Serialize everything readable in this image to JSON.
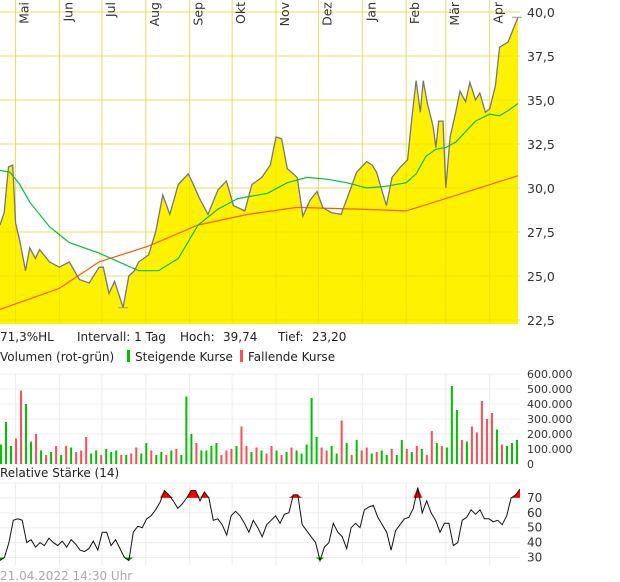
{
  "chart_data": [
    {
      "type": "area",
      "x_range": [
        "2021-04-20",
        "2022-04-21"
      ],
      "ylim": [
        22.5,
        40.0
      ],
      "yticks": [
        "22,5",
        "25,0",
        "27,5",
        "30,0",
        "32,5",
        "35,0",
        "37,5",
        "40,0"
      ],
      "ytick_values": [
        22.5,
        25,
        27.5,
        30,
        32.5,
        35,
        37.5,
        40
      ],
      "months": [
        {
          "label": "Mai",
          "date": "2021-05-01"
        },
        {
          "label": "Jun",
          "date": "2021-06-01"
        },
        {
          "label": "Jul",
          "date": "2021-07-01"
        },
        {
          "label": "Aug",
          "date": "2021-08-01"
        },
        {
          "label": "Sep",
          "date": "2021-09-01"
        },
        {
          "label": "Okt",
          "date": "2021-10-01"
        },
        {
          "label": "Nov",
          "date": "2021-11-01"
        },
        {
          "label": "Dez",
          "date": "2021-12-01"
        },
        {
          "label": "Jan",
          "date": "2022-01-01"
        },
        {
          "label": "Feb",
          "date": "2022-02-01"
        },
        {
          "label": "Mär",
          "date": "2022-03-01"
        },
        {
          "label": "Apr",
          "date": "2022-04-01"
        }
      ],
      "grid": true,
      "colors": {
        "fill": "#fff200",
        "line": "#777777",
        "ma_short": "#00c040",
        "ma_long": "#ff5a00"
      },
      "price": [
        [
          "2021-04-20",
          27.9
        ],
        [
          "2021-04-23",
          28.6
        ],
        [
          "2021-04-26",
          31.2
        ],
        [
          "2021-04-29",
          31.3
        ],
        [
          "2021-05-01",
          28.0
        ],
        [
          "2021-05-04",
          27.0
        ],
        [
          "2021-05-08",
          25.3
        ],
        [
          "2021-05-11",
          26.6
        ],
        [
          "2021-05-15",
          26.0
        ],
        [
          "2021-05-18",
          26.5
        ],
        [
          "2021-05-25",
          25.8
        ],
        [
          "2021-06-01",
          25.5
        ],
        [
          "2021-06-08",
          25.8
        ],
        [
          "2021-06-15",
          24.8
        ],
        [
          "2021-06-22",
          24.6
        ],
        [
          "2021-06-29",
          25.5
        ],
        [
          "2021-07-02",
          25.5
        ],
        [
          "2021-07-06",
          24.0
        ],
        [
          "2021-07-10",
          24.7
        ],
        [
          "2021-07-16",
          23.2
        ],
        [
          "2021-07-20",
          25.0
        ],
        [
          "2021-07-24",
          25.3
        ],
        [
          "2021-07-27",
          25.8
        ],
        [
          "2021-08-03",
          26.2
        ],
        [
          "2021-08-08",
          27.5
        ],
        [
          "2021-08-13",
          29.6
        ],
        [
          "2021-08-18",
          28.5
        ],
        [
          "2021-08-24",
          30.2
        ],
        [
          "2021-08-31",
          30.8
        ],
        [
          "2021-09-03",
          30.3
        ],
        [
          "2021-09-08",
          29.4
        ],
        [
          "2021-09-14",
          28.5
        ],
        [
          "2021-09-21",
          29.9
        ],
        [
          "2021-09-27",
          30.4
        ],
        [
          "2021-10-02",
          29.0
        ],
        [
          "2021-10-10",
          28.7
        ],
        [
          "2021-10-15",
          30.2
        ],
        [
          "2021-10-22",
          30.6
        ],
        [
          "2021-10-28",
          31.3
        ],
        [
          "2021-11-01",
          32.9
        ],
        [
          "2021-11-05",
          32.8
        ],
        [
          "2021-11-09",
          31.1
        ],
        [
          "2021-11-16",
          30.6
        ],
        [
          "2021-11-20",
          28.4
        ],
        [
          "2021-11-25",
          29.3
        ],
        [
          "2021-11-30",
          29.8
        ],
        [
          "2021-12-04",
          28.9
        ],
        [
          "2021-12-10",
          28.6
        ],
        [
          "2021-12-17",
          28.5
        ],
        [
          "2021-12-23",
          29.8
        ],
        [
          "2021-12-28",
          30.9
        ],
        [
          "2022-01-04",
          31.5
        ],
        [
          "2022-01-08",
          31.3
        ],
        [
          "2022-01-11",
          30.9
        ],
        [
          "2022-01-18",
          29.0
        ],
        [
          "2022-01-22",
          30.6
        ],
        [
          "2022-01-28",
          31.2
        ],
        [
          "2022-02-02",
          31.6
        ],
        [
          "2022-02-05",
          34.0
        ],
        [
          "2022-02-08",
          36.1
        ],
        [
          "2022-02-11",
          34.3
        ],
        [
          "2022-02-13",
          36.1
        ],
        [
          "2022-02-16",
          34.8
        ],
        [
          "2022-02-20",
          33.5
        ],
        [
          "2022-02-22",
          32.3
        ],
        [
          "2022-02-24",
          33.8
        ],
        [
          "2022-02-27",
          33.8
        ],
        [
          "2022-03-01",
          30.0
        ],
        [
          "2022-03-04",
          32.9
        ],
        [
          "2022-03-08",
          34.3
        ],
        [
          "2022-03-11",
          35.5
        ],
        [
          "2022-03-15",
          34.9
        ],
        [
          "2022-03-18",
          36.0
        ],
        [
          "2022-03-22",
          35.0
        ],
        [
          "2022-03-25",
          35.4
        ],
        [
          "2022-03-29",
          34.3
        ],
        [
          "2022-04-01",
          34.5
        ],
        [
          "2022-04-05",
          35.8
        ],
        [
          "2022-04-08",
          38.0
        ],
        [
          "2022-04-14",
          38.3
        ],
        [
          "2022-04-21",
          39.7
        ]
      ],
      "ma_short": [
        [
          "2021-04-20",
          31.0
        ],
        [
          "2021-04-27",
          30.9
        ],
        [
          "2021-05-04",
          30.2
        ],
        [
          "2021-05-11",
          29.2
        ],
        [
          "2021-05-25",
          27.8
        ],
        [
          "2021-06-08",
          26.9
        ],
        [
          "2021-06-29",
          26.3
        ],
        [
          "2021-07-13",
          25.8
        ],
        [
          "2021-07-27",
          25.3
        ],
        [
          "2021-08-10",
          25.3
        ],
        [
          "2021-08-24",
          26.0
        ],
        [
          "2021-09-07",
          27.9
        ],
        [
          "2021-09-21",
          28.8
        ],
        [
          "2021-10-05",
          29.4
        ],
        [
          "2021-10-26",
          29.7
        ],
        [
          "2021-11-09",
          30.3
        ],
        [
          "2021-11-23",
          30.6
        ],
        [
          "2021-12-07",
          30.5
        ],
        [
          "2021-12-21",
          30.3
        ],
        [
          "2022-01-04",
          30.0
        ],
        [
          "2022-01-18",
          30.1
        ],
        [
          "2022-02-01",
          30.3
        ],
        [
          "2022-02-08",
          30.8
        ],
        [
          "2022-02-15",
          31.8
        ],
        [
          "2022-02-22",
          32.2
        ],
        [
          "2022-03-01",
          32.3
        ],
        [
          "2022-03-08",
          32.6
        ],
        [
          "2022-03-22",
          33.8
        ],
        [
          "2022-04-01",
          34.2
        ],
        [
          "2022-04-08",
          34.1
        ],
        [
          "2022-04-14",
          34.4
        ],
        [
          "2022-04-21",
          34.8
        ]
      ],
      "ma_long": [
        [
          "2021-04-20",
          23.1
        ],
        [
          "2021-06-01",
          24.3
        ],
        [
          "2021-06-29",
          25.8
        ],
        [
          "2021-08-03",
          26.7
        ],
        [
          "2021-09-07",
          27.9
        ],
        [
          "2021-10-12",
          28.5
        ],
        [
          "2021-11-16",
          28.9
        ],
        [
          "2021-12-28",
          28.8
        ],
        [
          "2022-02-01",
          28.7
        ],
        [
          "2022-03-01",
          29.4
        ],
        [
          "2022-04-21",
          30.7
        ]
      ]
    },
    {
      "type": "bar",
      "title": "Volumen (rot-grün)",
      "legend": [
        {
          "name": "Steigende Kurse",
          "color": "#00c000"
        },
        {
          "name": "Fallende Kurse",
          "color": "#ff4d55"
        }
      ],
      "ylim": [
        0,
        600000
      ],
      "yticks": [
        "0",
        "100.000",
        "200.000",
        "300.000",
        "400.000",
        "500.000",
        "600.000"
      ],
      "volumes": [
        130000,
        280000,
        120000,
        170000,
        490000,
        400000,
        150000,
        200000,
        90000,
        60000,
        80000,
        120000,
        60000,
        120000,
        110000,
        80000,
        90000,
        180000,
        70000,
        90000,
        60000,
        100000,
        80000,
        90000,
        60000,
        60000,
        70000,
        110000,
        70000,
        140000,
        90000,
        60000,
        80000,
        60000,
        90000,
        100000,
        60000,
        450000,
        200000,
        140000,
        90000,
        90000,
        120000,
        140000,
        60000,
        90000,
        100000,
        120000,
        250000,
        120000,
        80000,
        110000,
        90000,
        70000,
        120000,
        90000,
        60000,
        80000,
        110000,
        90000,
        70000,
        130000,
        440000,
        180000,
        110000,
        90000,
        120000,
        70000,
        290000,
        140000,
        60000,
        160000,
        90000,
        110000,
        70000,
        80000,
        90000,
        60000,
        100000,
        60000,
        160000,
        100000,
        80000,
        120000,
        100000,
        60000,
        220000,
        140000,
        120000,
        110000,
        520000,
        360000,
        160000,
        150000,
        250000,
        210000,
        420000,
        300000,
        340000,
        230000,
        130000,
        120000,
        140000,
        160000
      ],
      "direction": [
        "g",
        "g",
        "g",
        "r",
        "r",
        "g",
        "g",
        "r",
        "g",
        "r",
        "g",
        "r",
        "g",
        "r",
        "g",
        "r",
        "r",
        "r",
        "g",
        "g",
        "r",
        "g",
        "g",
        "g",
        "r",
        "g",
        "r",
        "r",
        "g",
        "g",
        "r",
        "g",
        "g",
        "r",
        "g",
        "r",
        "g",
        "g",
        "g",
        "r",
        "g",
        "g",
        "g",
        "g",
        "r",
        "r",
        "r",
        "g",
        "r",
        "r",
        "g",
        "r",
        "g",
        "r",
        "r",
        "g",
        "r",
        "g",
        "r",
        "g",
        "g",
        "g",
        "g",
        "g",
        "r",
        "r",
        "g",
        "g",
        "r",
        "g",
        "r",
        "g",
        "r",
        "r",
        "g",
        "r",
        "g",
        "g",
        "r",
        "g",
        "g",
        "r",
        "g",
        "r",
        "g",
        "r",
        "r",
        "g",
        "r",
        "g",
        "g",
        "g",
        "r",
        "g",
        "r",
        "r",
        "r",
        "r",
        "r",
        "g",
        "r",
        "g",
        "g",
        "g"
      ]
    },
    {
      "type": "line",
      "title": "Relative Stärke (14)",
      "ylim": [
        25,
        80
      ],
      "yticks": [
        "30",
        "40",
        "50",
        "60",
        "70"
      ],
      "ytick_values": [
        30,
        40,
        50,
        60,
        70
      ],
      "colors": {
        "line": "#111111",
        "overbought": "#ff0000",
        "oversold": "#00a000"
      },
      "rsi": [
        28,
        30,
        40,
        55,
        56,
        55,
        40,
        42,
        37,
        40,
        38,
        43,
        40,
        38,
        41,
        37,
        42,
        39,
        35,
        34,
        36,
        41,
        35,
        47,
        47,
        38,
        42,
        36,
        30,
        28,
        47,
        51,
        50,
        56,
        58,
        62,
        67,
        75,
        72,
        68,
        63,
        66,
        70,
        75,
        75,
        68,
        74,
        70,
        55,
        56,
        52,
        45,
        58,
        61,
        58,
        53,
        47,
        55,
        50,
        44,
        52,
        55,
        58,
        53,
        59,
        60,
        72,
        72,
        52,
        48,
        44,
        40,
        28,
        37,
        40,
        53,
        47,
        44,
        36,
        50,
        53,
        50,
        62,
        64,
        65,
        57,
        52,
        47,
        35,
        48,
        52,
        56,
        57,
        63,
        77,
        60,
        68,
        60,
        55,
        47,
        53,
        53,
        38,
        40,
        55,
        57,
        62,
        59,
        62,
        56,
        56,
        54,
        55,
        52,
        58,
        70,
        72,
        76
      ]
    }
  ],
  "info": {
    "hl": "71,3%HL",
    "interval": "Intervall: 1 Tag",
    "high_label": "Hoch:",
    "high_value": "39,74",
    "low_label": "Tief:",
    "low_value": "23,20"
  },
  "timestamp": "21.04.2022 14:30 Uhr"
}
